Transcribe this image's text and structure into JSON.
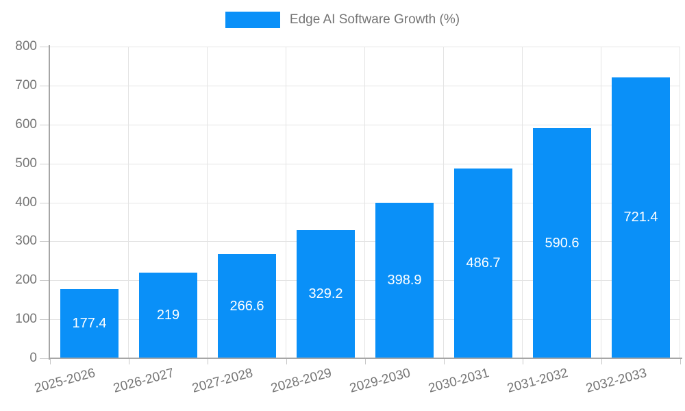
{
  "legend": {
    "label": "Edge AI Software Growth (%)"
  },
  "colors": {
    "bar": "#0a90f8",
    "grid": "#e4e4e4",
    "axis": "#a6a6a6",
    "tick_label": "#757575",
    "value_label": "#ffffff",
    "background": "#ffffff"
  },
  "chart_data": {
    "type": "bar",
    "title": "",
    "xlabel": "",
    "ylabel": "",
    "categories": [
      "2025-2026",
      "2026-2027",
      "2027-2028",
      "2028-2029",
      "2029-2030",
      "2030-2031",
      "2031-2032",
      "2032-2033"
    ],
    "series": [
      {
        "name": "Edge AI Software Growth (%)",
        "values": [
          177.4,
          219,
          266.6,
          329.2,
          398.9,
          486.7,
          590.6,
          721.4
        ],
        "value_labels": [
          "177.4",
          "219",
          "266.6",
          "329.2",
          "398.9",
          "486.7",
          "590.6",
          "721.4"
        ]
      }
    ],
    "ylim": [
      0,
      800
    ],
    "ytick_step": 100,
    "yticks": [
      0,
      100,
      200,
      300,
      400,
      500,
      600,
      700,
      800
    ],
    "grid": true,
    "legend_position": "top-center",
    "value_label_position": "inside-center",
    "x_label_rotation_deg": -15
  }
}
